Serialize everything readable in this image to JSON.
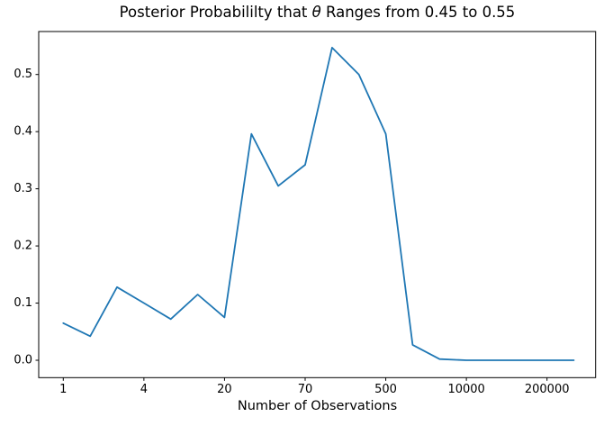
{
  "figure": {
    "title_parts": {
      "prefix": "Posterior Probabililty that ",
      "theta": "θ",
      "suffix": " Ranges from 0.45 to 0.55"
    },
    "xlabel": "Number of Observations"
  },
  "chart_data": {
    "type": "line",
    "title": "Posterior Probabililty that θ Ranges from 0.45 to 0.55",
    "xlabel": "Number of Observations",
    "ylabel": "",
    "grid": false,
    "legend": null,
    "x_axis": {
      "kind": "evenly-spaced-points",
      "num_points": 20,
      "tick_point_indices": [
        0,
        3,
        6,
        9,
        12,
        15,
        18
      ],
      "tick_labels": [
        "1",
        "4",
        "20",
        "70",
        "500",
        "10000",
        "200000"
      ]
    },
    "y_axis": {
      "tick_labels": [
        "0.0",
        "0.1",
        "0.2",
        "0.3",
        "0.4",
        "0.5"
      ],
      "tick_values": [
        0.0,
        0.1,
        0.2,
        0.3,
        0.4,
        0.5
      ],
      "range": [
        -0.028,
        0.575
      ]
    },
    "series": [
      {
        "name": "posterior probability",
        "color": "#1f77b4",
        "values": [
          0.065,
          0.042,
          0.128,
          0.1,
          0.072,
          0.115,
          0.075,
          0.396,
          0.305,
          0.342,
          0.547,
          0.5,
          0.396,
          0.027,
          0.002,
          0.0,
          0.0,
          0.0,
          0.0,
          0.0
        ]
      }
    ],
    "colors": {
      "line": "#1f77b4",
      "text": "#000000",
      "spine": "#000000",
      "background": "#ffffff"
    }
  }
}
